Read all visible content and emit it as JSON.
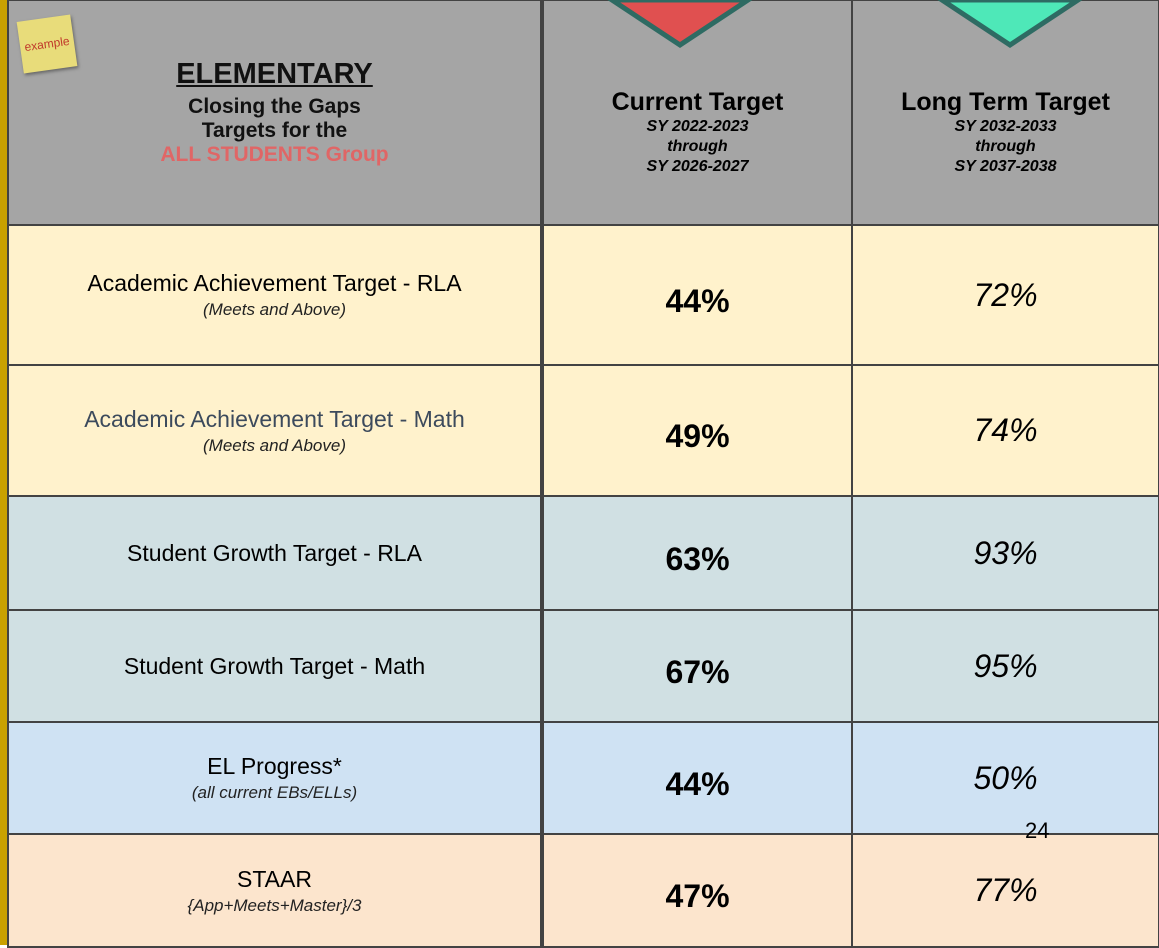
{
  "sticky_note": "example",
  "header": {
    "title": "ELEMENTARY",
    "line1": "Closing the Gaps",
    "line2": "Targets for the",
    "line3": "ALL STUDENTS Group"
  },
  "columns": [
    {
      "title": "Current Target",
      "lines": [
        "SY 2022-2023",
        "through",
        "SY 2026-2027"
      ]
    },
    {
      "title": "Long Term Target",
      "lines": [
        "SY 2032-2033",
        "through",
        "SY 2037-2038"
      ]
    }
  ],
  "rows": [
    {
      "label": "Academic Achievement Target - RLA",
      "note": "(Meets and Above)",
      "current": "44%",
      "long_term": "72%"
    },
    {
      "label": "Academic Achievement Target - Math",
      "note": "(Meets and Above)",
      "current": "49%",
      "long_term": "74%"
    },
    {
      "label": "Student Growth Target - RLA",
      "current": "63%",
      "long_term": "93%"
    },
    {
      "label": "Student Growth Target - Math",
      "current": "67%",
      "long_term": "95%"
    },
    {
      "label": "EL Progress*",
      "note": "(all current EBs/ELLs)",
      "current": "44%",
      "long_term": "50%"
    },
    {
      "label": "STAAR",
      "note": "{App+Meets+Master}/3",
      "current": "47%",
      "long_term": "77%"
    }
  ],
  "page_number": "24"
}
